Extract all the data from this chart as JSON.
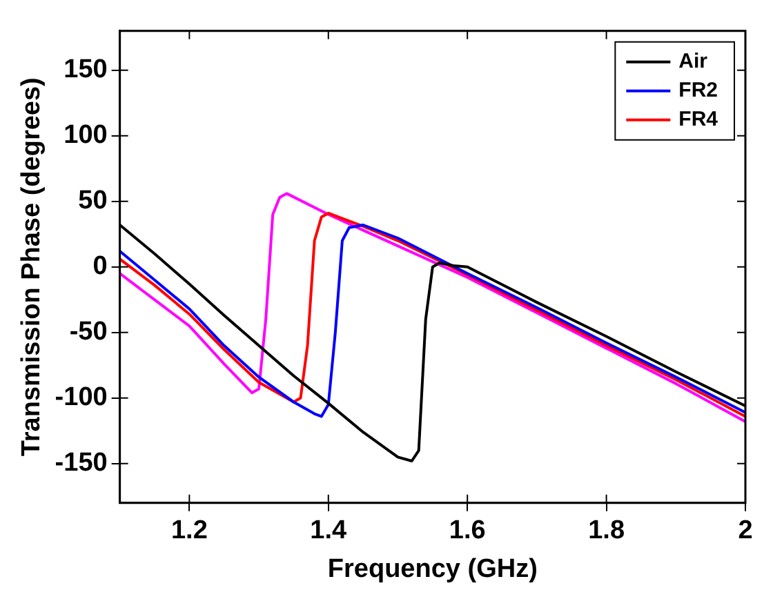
{
  "chart_data": {
    "type": "line",
    "xlabel": "Frequency (GHz)",
    "ylabel": "Transmission Phase (degrees)",
    "xlim": [
      1.1,
      2
    ],
    "xticks": [
      1.2,
      1.4,
      1.6,
      1.8,
      2
    ],
    "ylim": [
      -180,
      180
    ],
    "yticks": [
      -150,
      -100,
      -50,
      0,
      50,
      100,
      150
    ],
    "legend": "top right",
    "series": [
      {
        "name": "Air",
        "color": "#000000",
        "x": [
          1.1,
          1.15,
          1.2,
          1.25,
          1.3,
          1.35,
          1.4,
          1.45,
          1.5,
          1.52,
          1.53,
          1.54,
          1.55,
          1.56,
          1.58,
          1.6,
          1.7,
          1.8,
          1.9,
          2
        ],
        "values": [
          32,
          10,
          -13,
          -37,
          -60,
          -83,
          -104,
          -126,
          -145,
          -148,
          -140,
          -40,
          0,
          3,
          1,
          0,
          -27,
          -53,
          -80,
          -106
        ]
      },
      {
        "name": "FR2",
        "color": "#0000ff",
        "x": [
          1.1,
          1.15,
          1.2,
          1.25,
          1.3,
          1.35,
          1.38,
          1.39,
          1.4,
          1.41,
          1.42,
          1.43,
          1.45,
          1.5,
          1.6,
          1.7,
          1.8,
          1.9,
          2
        ],
        "values": [
          12,
          -10,
          -32,
          -60,
          -84,
          -103,
          -112,
          -114,
          -105,
          -50,
          20,
          30,
          32,
          22,
          -5,
          -31,
          -58,
          -84,
          -111
        ]
      },
      {
        "name": "FR4",
        "color": "#ff0000",
        "x": [
          1.1,
          1.15,
          1.2,
          1.25,
          1.3,
          1.35,
          1.36,
          1.37,
          1.38,
          1.39,
          1.4,
          1.45,
          1.5,
          1.6,
          1.7,
          1.8,
          1.9,
          2
        ],
        "values": [
          6,
          -14,
          -36,
          -63,
          -88,
          -103,
          -100,
          -60,
          20,
          38,
          41,
          31,
          20,
          -6,
          -33,
          -60,
          -86,
          -114
        ]
      },
      {
        "color": "#ff00ff",
        "x": [
          1.1,
          1.15,
          1.2,
          1.25,
          1.29,
          1.3,
          1.31,
          1.32,
          1.33,
          1.34,
          1.4,
          1.45,
          1.5,
          1.6,
          1.7,
          1.8,
          1.9,
          2
        ],
        "values": [
          -5,
          -25,
          -45,
          -74,
          -96,
          -93,
          -40,
          40,
          53,
          56,
          40,
          28,
          16,
          -8,
          -35,
          -62,
          -89,
          -118
        ]
      }
    ]
  }
}
